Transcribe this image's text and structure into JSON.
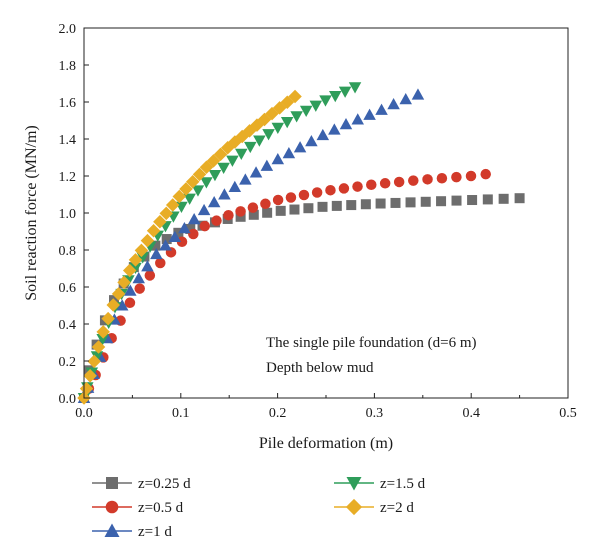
{
  "chart_data": {
    "type": "scatter",
    "xlabel": "Pile deformation (m)",
    "ylabel": "Soil reaction force (MN/m)",
    "xlim": [
      0,
      0.5
    ],
    "ylim": [
      0,
      2.0
    ],
    "xticks": [
      "0.0",
      "0.1",
      "0.2",
      "0.3",
      "0.4",
      "0.5"
    ],
    "yticks": [
      "0.0",
      "0.2",
      "0.4",
      "0.6",
      "0.8",
      "1.0",
      "1.2",
      "1.4",
      "1.6",
      "1.8",
      "2.0"
    ],
    "grid": false,
    "legend_position": "bottom",
    "annotations": [
      "The single pile foundation (d=6 m)",
      "Depth below mud"
    ],
    "series": [
      {
        "name": "z=0.25 d",
        "marker": "square",
        "color": "#6d6d6d",
        "x": [
          0,
          0.005,
          0.01,
          0.02,
          0.03,
          0.05,
          0.075,
          0.1,
          0.15,
          0.2,
          0.25,
          0.3,
          0.35,
          0.4,
          0.45
        ],
        "y": [
          0,
          0.14,
          0.24,
          0.4,
          0.52,
          0.7,
          0.83,
          0.9,
          0.97,
          1.01,
          1.035,
          1.05,
          1.06,
          1.07,
          1.08
        ]
      },
      {
        "name": "z=0.5 d",
        "marker": "circle",
        "color": "#d23a2a",
        "x": [
          0,
          0.01,
          0.02,
          0.03,
          0.05,
          0.075,
          0.1,
          0.125,
          0.15,
          0.2,
          0.25,
          0.3,
          0.35,
          0.4,
          0.415
        ],
        "y": [
          0,
          0.1,
          0.22,
          0.34,
          0.54,
          0.71,
          0.84,
          0.93,
          0.99,
          1.07,
          1.12,
          1.155,
          1.18,
          1.2,
          1.21
        ]
      },
      {
        "name": "z=1 d",
        "marker": "triangle-up",
        "color": "#3b62ad",
        "x": [
          0,
          0.01,
          0.02,
          0.03,
          0.05,
          0.075,
          0.1,
          0.125,
          0.15,
          0.175,
          0.2,
          0.225,
          0.25,
          0.275,
          0.3,
          0.325,
          0.345
        ],
        "y": [
          0,
          0.13,
          0.27,
          0.41,
          0.6,
          0.78,
          0.9,
          1.02,
          1.12,
          1.21,
          1.29,
          1.36,
          1.43,
          1.49,
          1.54,
          1.6,
          1.64
        ]
      },
      {
        "name": "z=1.5 d",
        "marker": "triangle-down",
        "color": "#2f9d5a",
        "x": [
          0,
          0.01,
          0.02,
          0.03,
          0.05,
          0.075,
          0.1,
          0.125,
          0.15,
          0.175,
          0.2,
          0.225,
          0.25,
          0.28
        ],
        "y": [
          0,
          0.17,
          0.33,
          0.47,
          0.68,
          0.87,
          1.03,
          1.16,
          1.27,
          1.37,
          1.46,
          1.54,
          1.61,
          1.68
        ]
      },
      {
        "name": "z=2 d",
        "marker": "diamond",
        "color": "#e8ad26",
        "x": [
          0,
          0.01,
          0.02,
          0.03,
          0.05,
          0.075,
          0.1,
          0.125,
          0.15,
          0.175,
          0.2,
          0.218
        ],
        "y": [
          0,
          0.19,
          0.36,
          0.5,
          0.72,
          0.93,
          1.1,
          1.24,
          1.36,
          1.46,
          1.56,
          1.63
        ]
      }
    ]
  }
}
